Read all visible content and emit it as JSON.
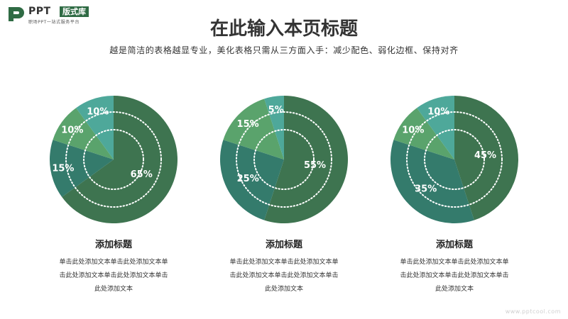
{
  "logo": {
    "brand": "PPT",
    "badge": "版式库",
    "tagline": "职场PPT一站式服务平台"
  },
  "header": {
    "title": "在此输入本页标题",
    "subtitle": "越是简洁的表格越显专业，美化表格只需从三方面入手：减少配色、弱化边框、保持对齐"
  },
  "colors": {
    "dark_green": "#3e7450",
    "teal": "#347b6c",
    "light_green": "#5aa36c",
    "aqua": "#4ea89a"
  },
  "chart_data": [
    {
      "type": "pie",
      "slices": [
        {
          "label": "65%",
          "value": 65,
          "color": "#3e7450"
        },
        {
          "label": "15%",
          "value": 15,
          "color": "#347b6c"
        },
        {
          "label": "10%",
          "value": 10,
          "color": "#5aa36c"
        },
        {
          "label": "10%",
          "value": 10,
          "color": "#4ea89a"
        }
      ]
    },
    {
      "type": "pie",
      "slices": [
        {
          "label": "55%",
          "value": 55,
          "color": "#3e7450"
        },
        {
          "label": "25%",
          "value": 25,
          "color": "#347b6c"
        },
        {
          "label": "15%",
          "value": 15,
          "color": "#5aa36c"
        },
        {
          "label": "5%",
          "value": 5,
          "color": "#4ea89a"
        }
      ]
    },
    {
      "type": "pie",
      "slices": [
        {
          "label": "45%",
          "value": 45,
          "color": "#3e7450"
        },
        {
          "label": "35%",
          "value": 35,
          "color": "#347b6c"
        },
        {
          "label": "10%",
          "value": 10,
          "color": "#5aa36c"
        },
        {
          "label": "10%",
          "value": 10,
          "color": "#4ea89a"
        }
      ]
    }
  ],
  "panels": [
    {
      "title": "添加标题",
      "body": "单击此处添加文本单击此处添加文本单击此处添加文本单击此处添加文本单击此处添加文本"
    },
    {
      "title": "添加标题",
      "body": "单击此处添加文本单击此处添加文本单击此处添加文本单击此处添加文本单击此处添加文本"
    },
    {
      "title": "添加标题",
      "body": "单击此处添加文本单击此处添加文本单击此处添加文本单击此处添加文本单击此处添加文本"
    }
  ],
  "watermark": "www.pptcool.com"
}
